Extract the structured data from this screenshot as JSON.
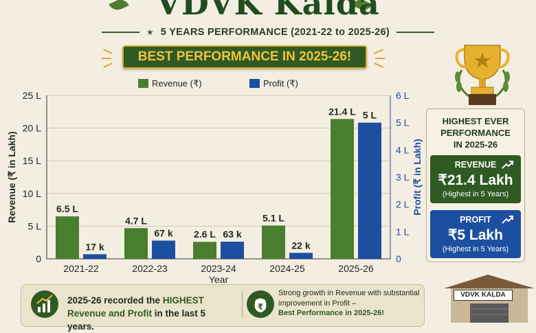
{
  "header": {
    "title": "VDVK Kalda",
    "subtitle": "5 YEARS PERFORMANCE (2021-22 to 2025-26)",
    "banner": "BEST PERFORMANCE IN 2025-26!"
  },
  "legend": {
    "revenue": "Revenue (₹)",
    "profit": "Profit (₹)"
  },
  "colors": {
    "revenue": "#4a7e2f",
    "profit": "#1d4fa0",
    "dark_green": "#2f5a23",
    "gold": "#d9a92d"
  },
  "chart_data": {
    "type": "bar",
    "categories": [
      "2021-22",
      "2022-23",
      "2023-24",
      "2024-25",
      "2025-26"
    ],
    "series": [
      {
        "name": "Revenue (₹)",
        "axis": "left",
        "unit": "Lakh",
        "values": [
          6.5,
          4.7,
          2.6,
          5.1,
          21.4
        ],
        "labels": [
          "6.5 L",
          "4.7 L",
          "2.6 L",
          "5.1 L",
          "21.4 L"
        ]
      },
      {
        "name": "Profit (₹)",
        "axis": "right",
        "unit": "Lakh",
        "values": [
          0.17,
          0.67,
          0.63,
          0.22,
          5
        ],
        "labels": [
          "17 k",
          "67 k",
          "63 k",
          "22 k",
          "5 L"
        ]
      }
    ],
    "xlabel": "Year",
    "ylabel_left": "Revenue (₹ in Lakh)",
    "ylabel_right": "Profit (₹ in Lakh)",
    "ylim_left": [
      0,
      25
    ],
    "ylim_right": [
      0,
      6
    ],
    "yticks_left": [
      "0",
      "5 L",
      "10 L",
      "15 L",
      "20 L",
      "25 L"
    ],
    "yticks_right": [
      "0",
      "1 L",
      "2 L",
      "3 L",
      "4 L",
      "5 L",
      "6 L"
    ],
    "grid": true,
    "legend_position": "top"
  },
  "panel": {
    "heading_lines": [
      "HIGHEST EVER",
      "PERFORMANCE",
      "IN 2025-26"
    ],
    "revenue_card": {
      "label": "REVENUE",
      "value": "₹21.4 Lakh",
      "note": "(Highest in 5 Years)"
    },
    "profit_card": {
      "label": "PROFIT",
      "value": "₹5 Lakh",
      "note": "(Highest in 5 Years)"
    }
  },
  "bottom": {
    "left_pre": "2025-26 recorded the ",
    "left_highlight": "HIGHEST",
    "left_mid": "Revenue and Profit",
    "left_post": " in the last 5 years.",
    "right_text": "Strong growth in Revenue with substantial improvement in Profit –",
    "right_highlight": "Best Performance in 2025-26!"
  },
  "shop_sign": "VDVK KALDA",
  "icons": [
    "leaf-icon",
    "star-icon",
    "trophy-icon",
    "trend-up-icon",
    "growth-chart-icon",
    "money-bag-icon",
    "shop-icon"
  ]
}
